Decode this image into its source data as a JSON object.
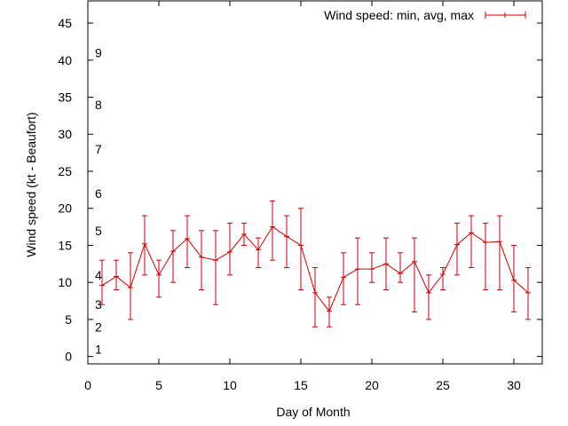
{
  "chart_data": {
    "type": "line",
    "title": "",
    "xlabel": "Day of Month",
    "ylabel": "Wind speed (kt - Beaufort)",
    "xlim": [
      0,
      32
    ],
    "ylim": [
      -1,
      48
    ],
    "xticks": [
      0,
      5,
      10,
      15,
      20,
      25,
      30
    ],
    "yticks": [
      0,
      5,
      10,
      15,
      20,
      25,
      30,
      35,
      40,
      45
    ],
    "grid": false,
    "legend_position": "top-right",
    "series": [
      {
        "name": "Wind speed: min, avg, max",
        "color": "#cc0000",
        "x": [
          1,
          2,
          3,
          4,
          5,
          6,
          7,
          8,
          9,
          10,
          11,
          12,
          13,
          14,
          15,
          16,
          17,
          18,
          19,
          20,
          21,
          22,
          23,
          24,
          25,
          26,
          27,
          28,
          29,
          30,
          31
        ],
        "avg": [
          9.6,
          10.8,
          9.3,
          15.2,
          11.0,
          14.2,
          15.9,
          13.4,
          13.0,
          14.1,
          16.5,
          14.4,
          17.5,
          16.2,
          15.0,
          8.6,
          6.1,
          10.7,
          11.8,
          11.8,
          12.5,
          11.2,
          12.8,
          8.6,
          11.1,
          15.1,
          16.7,
          15.4,
          15.5,
          10.3,
          8.6
        ],
        "min": [
          7,
          9,
          5,
          11,
          8,
          10,
          12,
          9,
          7,
          11,
          15,
          12,
          13,
          12,
          9,
          4,
          4,
          7,
          7,
          10,
          9,
          10,
          6,
          5,
          9,
          11,
          12,
          9,
          9,
          6,
          5
        ],
        "max": [
          13,
          13,
          14,
          19,
          13,
          17,
          19,
          17,
          17,
          18,
          18,
          16,
          21,
          19,
          20,
          12,
          8,
          14,
          16,
          14,
          16,
          14,
          16,
          11,
          12,
          18,
          19,
          18,
          19,
          15,
          12
        ]
      }
    ],
    "beaufort_labels": [
      {
        "label": "1",
        "y": 1
      },
      {
        "label": "2",
        "y": 4
      },
      {
        "label": "3",
        "y": 7
      },
      {
        "label": "4",
        "y": 11
      },
      {
        "label": "5",
        "y": 17
      },
      {
        "label": "6",
        "y": 22
      },
      {
        "label": "7",
        "y": 28
      },
      {
        "label": "8",
        "y": 34
      },
      {
        "label": "9",
        "y": 41
      }
    ]
  }
}
